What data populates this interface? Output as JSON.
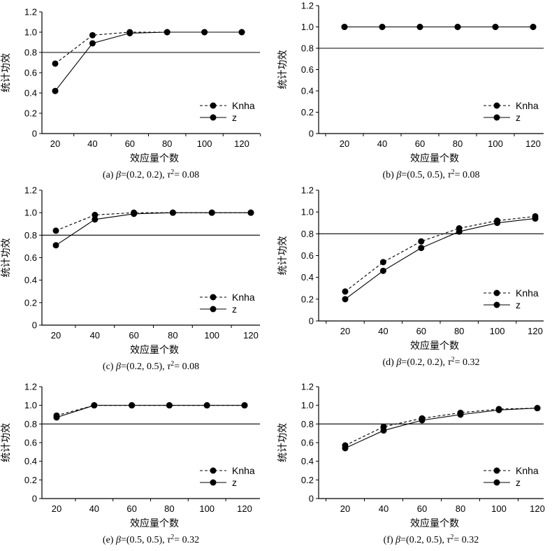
{
  "chart_data": [
    {
      "type": "line",
      "caption": {
        "prefix": "(a) ",
        "greek": "β",
        "mid": "=(0.2, 0.2), ",
        "tau": "τ",
        "sup": "2",
        "value": "= 0.08"
      },
      "xlabel": "效应量个数",
      "ylabel": "统计功效",
      "x": [
        20,
        40,
        60,
        80,
        100,
        120
      ],
      "xticks": [
        "20",
        "40",
        "60",
        "80",
        "100",
        "120"
      ],
      "yticks": [
        "0",
        "0.2",
        "0.4",
        "0.6",
        "0.8",
        "1.0",
        "1.2"
      ],
      "ylim": [
        0,
        1.2
      ],
      "reference_line": 0.8,
      "legend": "bottom-right",
      "series": [
        {
          "name": "Knha",
          "style": "dashed",
          "values": [
            0.69,
            0.97,
            1.0,
            1.0,
            1.0,
            1.0
          ]
        },
        {
          "name": "z",
          "style": "solid",
          "values": [
            0.42,
            0.89,
            0.99,
            1.0,
            1.0,
            1.0
          ]
        }
      ]
    },
    {
      "type": "line",
      "caption": {
        "prefix": "(b) ",
        "greek": "β",
        "mid": "=(0.5, 0.5), ",
        "tau": "τ",
        "sup": "2",
        "value": "= 0.08"
      },
      "xlabel": "效应量个数",
      "ylabel": "统计功效",
      "x": [
        20,
        40,
        60,
        80,
        100,
        120
      ],
      "xticks": [
        "20",
        "40",
        "60",
        "80",
        "100",
        "120"
      ],
      "yticks": [
        "0",
        "0.2",
        "0.4",
        "0.6",
        "0.8",
        "1.0",
        "1.2"
      ],
      "ylim": [
        0,
        1.2
      ],
      "reference_line": 0.8,
      "legend": "bottom-right",
      "series": [
        {
          "name": "Knha",
          "style": "dashed",
          "values": [
            1.0,
            1.0,
            1.0,
            1.0,
            1.0,
            1.0
          ]
        },
        {
          "name": "z",
          "style": "solid",
          "values": [
            1.0,
            1.0,
            1.0,
            1.0,
            1.0,
            1.0
          ]
        }
      ]
    },
    {
      "type": "line",
      "caption": {
        "prefix": "(c) ",
        "greek": "β",
        "mid": "=(0.2, 0.5), ",
        "tau": "τ",
        "sup": "2",
        "value": "= 0.08"
      },
      "xlabel": "效应量个数",
      "ylabel": "统计功效",
      "x": [
        20,
        40,
        60,
        80,
        100,
        120
      ],
      "xticks": [
        "20",
        "40",
        "60",
        "80",
        "100",
        "120"
      ],
      "yticks": [
        "0",
        "0.2",
        "0.4",
        "0.6",
        "0.8",
        "1.0",
        "1.2"
      ],
      "ylim": [
        0,
        1.2
      ],
      "reference_line": 0.8,
      "legend": "bottom-right",
      "series": [
        {
          "name": "Knha",
          "style": "dashed",
          "values": [
            0.84,
            0.98,
            1.0,
            1.0,
            1.0,
            1.0
          ]
        },
        {
          "name": "z",
          "style": "solid",
          "values": [
            0.71,
            0.94,
            0.99,
            1.0,
            1.0,
            1.0
          ]
        }
      ]
    },
    {
      "type": "line",
      "caption": {
        "prefix": "(d) ",
        "greek": "β",
        "mid": "=(0.2, 0.2), ",
        "tau": "τ",
        "sup": "2",
        "value": "= 0.32"
      },
      "xlabel": "效应量个数",
      "ylabel": "统计功效",
      "x": [
        20,
        40,
        60,
        80,
        100,
        120
      ],
      "xticks": [
        "20",
        "40",
        "60",
        "80",
        "100",
        "120"
      ],
      "yticks": [
        "0",
        "0.2",
        "0.4",
        "0.6",
        "0.8",
        "1.0",
        "1.2"
      ],
      "ylim": [
        0,
        1.2
      ],
      "reference_line": 0.8,
      "legend": "bottom-right",
      "series": [
        {
          "name": "Knha",
          "style": "dashed",
          "values": [
            0.27,
            0.54,
            0.73,
            0.85,
            0.92,
            0.96
          ]
        },
        {
          "name": "z",
          "style": "solid",
          "values": [
            0.2,
            0.46,
            0.67,
            0.82,
            0.9,
            0.94
          ]
        }
      ]
    },
    {
      "type": "line",
      "caption": {
        "prefix": "(e) ",
        "greek": "β",
        "mid": "=(0.5, 0.5), ",
        "tau": "τ",
        "sup": "2",
        "value": "= 0.32"
      },
      "xlabel": "效应量个数",
      "ylabel": "统计功效",
      "x": [
        20,
        40,
        60,
        80,
        100,
        120
      ],
      "xticks": [
        "20",
        "40",
        "60",
        "80",
        "100",
        "120"
      ],
      "yticks": [
        "0",
        "0.2",
        "0.4",
        "0.6",
        "0.8",
        "1.0",
        "1.2"
      ],
      "ylim": [
        0,
        1.2
      ],
      "reference_line": 0.8,
      "legend": "bottom-right",
      "series": [
        {
          "name": "Knha",
          "style": "dashed",
          "values": [
            0.89,
            1.0,
            1.0,
            1.0,
            1.0,
            1.0
          ]
        },
        {
          "name": "z",
          "style": "solid",
          "values": [
            0.87,
            1.0,
            1.0,
            1.0,
            1.0,
            1.0
          ]
        }
      ]
    },
    {
      "type": "line",
      "caption": {
        "prefix": "(f) ",
        "greek": "β",
        "mid": "=(0.2, 0.5), ",
        "tau": "τ",
        "sup": "2",
        "value": "= 0.32"
      },
      "xlabel": "效应量个数",
      "ylabel": "统计功效",
      "x": [
        20,
        40,
        60,
        80,
        100,
        120
      ],
      "xticks": [
        "20",
        "40",
        "60",
        "80",
        "100",
        "120"
      ],
      "yticks": [
        "0",
        "0.2",
        "0.4",
        "0.6",
        "0.8",
        "1.0",
        "1.2"
      ],
      "ylim": [
        0,
        1.2
      ],
      "reference_line": 0.8,
      "legend": "bottom-right",
      "series": [
        {
          "name": "Knha",
          "style": "dashed",
          "values": [
            0.57,
            0.77,
            0.86,
            0.92,
            0.96,
            0.97
          ]
        },
        {
          "name": "z",
          "style": "solid",
          "values": [
            0.54,
            0.73,
            0.84,
            0.9,
            0.95,
            0.97
          ]
        }
      ]
    }
  ]
}
